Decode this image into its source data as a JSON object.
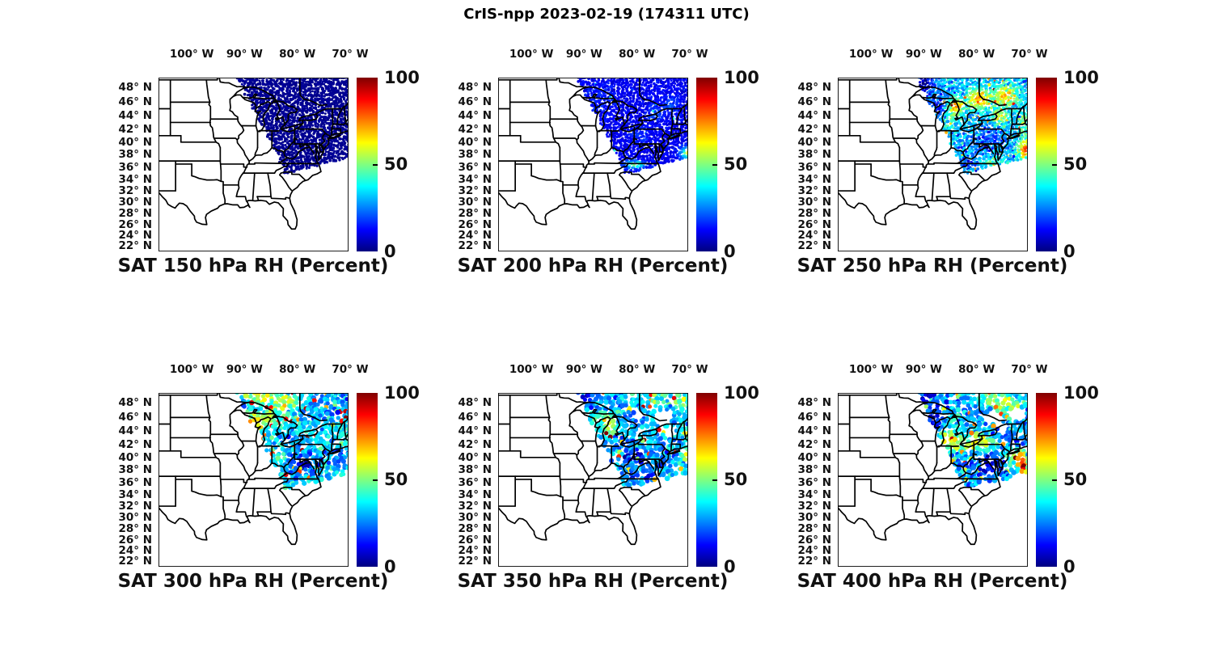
{
  "figure": {
    "title": "CrIS-npp 2023-02-19 (174311 UTC)"
  },
  "axes": {
    "lon_ticks": [
      "100° W",
      "90° W",
      "80° W",
      "70° W"
    ],
    "lon_tick_values": [
      -100,
      -90,
      -80,
      -70
    ],
    "lat_ticks": [
      "48° N",
      "46° N",
      "44° N",
      "42° N",
      "40° N",
      "38° N",
      "36° N",
      "34° N",
      "32° N",
      "30° N",
      "28° N",
      "26° N",
      "24° N",
      "22° N"
    ],
    "lat_tick_values": [
      48,
      46,
      44,
      42,
      40,
      38,
      36,
      34,
      32,
      30,
      28,
      26,
      24,
      22
    ],
    "lon_range": [
      -106.3,
      -70.3
    ],
    "lat_range": [
      21.0,
      49.3
    ],
    "projection": "mercator"
  },
  "colorbar": {
    "min": 0,
    "max": 100,
    "tick_labels": [
      "0",
      "50",
      "100"
    ],
    "colormap": "jet"
  },
  "chart_data": {
    "type": "scatter",
    "satellite": "CrIS-npp",
    "date": "2023-02-19",
    "time_utc": "174311",
    "variable": "Relative Humidity (Percent)",
    "value_range": [
      0,
      100
    ],
    "swath_polygon": [
      [
        -91.6,
        49.8
      ],
      [
        -88.8,
        45.6
      ],
      [
        -86.2,
        41.9
      ],
      [
        -83.7,
        38.0
      ],
      [
        -82.3,
        34.9
      ],
      [
        -79.0,
        35.6
      ],
      [
        -76.0,
        36.3
      ],
      [
        -73.0,
        36.9
      ],
      [
        -69.9,
        37.5
      ],
      [
        -69.9,
        49.8
      ]
    ],
    "panels": [
      {
        "title": "SAT 150 hPa RH (Percent)",
        "pressure_hpa": 150,
        "base_rh": 2,
        "noise": 1.2,
        "dot_radius": 1.7,
        "grid_step": 2.7,
        "dropout": 0,
        "speckle_prob": 0,
        "speckle_amp": 0,
        "streak_amp": 0,
        "rh_regions": [],
        "gaps": []
      },
      {
        "title": "SAT 200 hPa RH (Percent)",
        "pressure_hpa": 200,
        "base_rh": 11,
        "noise": 3,
        "dot_radius": 1.7,
        "grid_step": 2.7,
        "dropout": 0,
        "speckle_prob": 0.004,
        "speckle_amp": 25,
        "streak_amp": 4,
        "rh_regions": [
          [
            -80.3,
            36.4,
            1.8,
            0.6,
            38
          ],
          [
            -70.6,
            38.2,
            1.3,
            1.0,
            30
          ],
          [
            -70.4,
            38.4,
            0.5,
            0.5,
            25
          ],
          [
            -76.5,
            44.3,
            1.5,
            1.2,
            8
          ],
          [
            -73.5,
            45.5,
            1.5,
            1.2,
            9
          ],
          [
            -79.5,
            41.3,
            2.0,
            1.5,
            6
          ],
          [
            -87.0,
            46.5,
            2.5,
            2.0,
            5
          ]
        ],
        "gaps": []
      },
      {
        "title": "SAT 250 hPa RH (Percent)",
        "pressure_hpa": 250,
        "base_rh": 30,
        "noise": 9,
        "dot_radius": 1.7,
        "grid_step": 2.7,
        "dropout": 0,
        "speckle_prob": 0.02,
        "speckle_amp": 35,
        "streak_amp": 14,
        "rh_regions": [
          [
            -90.0,
            48.6,
            2.2,
            1.4,
            -26
          ],
          [
            -87.6,
            45.8,
            2.0,
            1.5,
            -16
          ],
          [
            -84.0,
            45.3,
            1.5,
            1.2,
            40
          ],
          [
            -79.5,
            46.3,
            2.2,
            1.4,
            42
          ],
          [
            -74.5,
            46.8,
            2.2,
            1.5,
            38
          ],
          [
            -75.5,
            43.8,
            1.5,
            1.0,
            30
          ],
          [
            -71.0,
            43.0,
            1.0,
            1.5,
            25
          ],
          [
            -70.8,
            38.8,
            1.3,
            1.6,
            45
          ],
          [
            -77.5,
            40.3,
            3.0,
            1.8,
            -13
          ],
          [
            -81.5,
            36.6,
            2.2,
            1.0,
            -13
          ],
          [
            -77.0,
            36.8,
            2.5,
            0.7,
            15
          ],
          [
            -84.8,
            43.0,
            1.5,
            1.2,
            12
          ]
        ],
        "gaps": []
      },
      {
        "title": "SAT 300 hPa RH (Percent)",
        "pressure_hpa": 300,
        "base_rh": 34,
        "noise": 13,
        "dot_radius": 2.9,
        "grid_step": 4.3,
        "dropout": 0.1,
        "speckle_prob": 0.05,
        "speckle_amp": 45,
        "streak_amp": 8,
        "rh_regions": [
          [
            -86.5,
            48.7,
            3.0,
            1.2,
            25
          ],
          [
            -82.5,
            47.8,
            2.0,
            1.0,
            26
          ],
          [
            -88.3,
            44.8,
            2.2,
            1.8,
            26
          ],
          [
            -84.8,
            45.9,
            1.8,
            1.0,
            22
          ],
          [
            -90.5,
            47.8,
            1.5,
            1.0,
            -20
          ],
          [
            -73.5,
            47.0,
            2.0,
            1.5,
            -12
          ],
          [
            -77.5,
            42.3,
            3.0,
            2.0,
            -6
          ],
          [
            -78.8,
            38.8,
            3.0,
            1.6,
            -20
          ],
          [
            -72.5,
            39.8,
            2.0,
            1.6,
            -10
          ],
          [
            -71.0,
            44.0,
            1.5,
            1.5,
            8
          ]
        ],
        "gaps": []
      },
      {
        "title": "SAT 350 hPa RH (Percent)",
        "pressure_hpa": 350,
        "base_rh": 30,
        "noise": 12,
        "dot_radius": 2.9,
        "grid_step": 4.3,
        "dropout": 0.12,
        "speckle_prob": 0.05,
        "speckle_amp": 45,
        "streak_amp": 7,
        "rh_regions": [
          [
            -89.8,
            48.6,
            1.8,
            1.2,
            -20
          ],
          [
            -85.3,
            44.6,
            1.4,
            1.3,
            25
          ],
          [
            -87.0,
            45.8,
            2.0,
            1.2,
            15
          ],
          [
            -79.0,
            42.5,
            1.2,
            0.9,
            20
          ],
          [
            -80.5,
            40.3,
            3.0,
            1.8,
            -16
          ],
          [
            -75.5,
            48.5,
            2.5,
            1.0,
            18
          ],
          [
            -71.3,
            48.3,
            1.2,
            1.0,
            25
          ],
          [
            -70.5,
            40.4,
            0.8,
            1.2,
            40
          ],
          [
            -70.6,
            43.6,
            0.7,
            0.7,
            35
          ],
          [
            -78.5,
            37.0,
            3.0,
            1.0,
            -10
          ]
        ],
        "gaps": [
          [
            -75.2,
            45.8,
            1.9,
            1.1
          ],
          [
            -73.8,
            44.0,
            1.1,
            0.8
          ],
          [
            -79.7,
            46.4,
            1.0,
            0.7
          ]
        ]
      },
      {
        "title": "SAT 400 hPa RH (Percent)",
        "pressure_hpa": 400,
        "base_rh": 28,
        "noise": 13,
        "dot_radius": 2.9,
        "grid_step": 4.3,
        "dropout": 0.12,
        "speckle_prob": 0.05,
        "speckle_amp": 40,
        "streak_amp": 8,
        "rh_regions": [
          [
            -89.5,
            48.5,
            2.0,
            1.3,
            -24
          ],
          [
            -88.3,
            45.0,
            1.2,
            1.5,
            -20
          ],
          [
            -76.5,
            48.5,
            3.5,
            1.2,
            25
          ],
          [
            -73.0,
            47.0,
            2.0,
            1.5,
            20
          ],
          [
            -84.8,
            42.5,
            1.8,
            1.5,
            40
          ],
          [
            -79.5,
            42.3,
            2.5,
            1.2,
            35
          ],
          [
            -71.2,
            39.0,
            1.0,
            2.0,
            60
          ],
          [
            -73.0,
            40.0,
            1.5,
            1.0,
            30
          ],
          [
            -77.5,
            38.8,
            2.5,
            1.5,
            -20
          ],
          [
            -75.8,
            44.5,
            1.5,
            1.0,
            -8
          ]
        ],
        "gaps": [
          [
            -77.0,
            46.0,
            1.5,
            1.0
          ],
          [
            -72.3,
            46.3,
            1.2,
            0.9
          ],
          [
            -75.0,
            44.3,
            1.0,
            0.7
          ]
        ]
      }
    ]
  }
}
